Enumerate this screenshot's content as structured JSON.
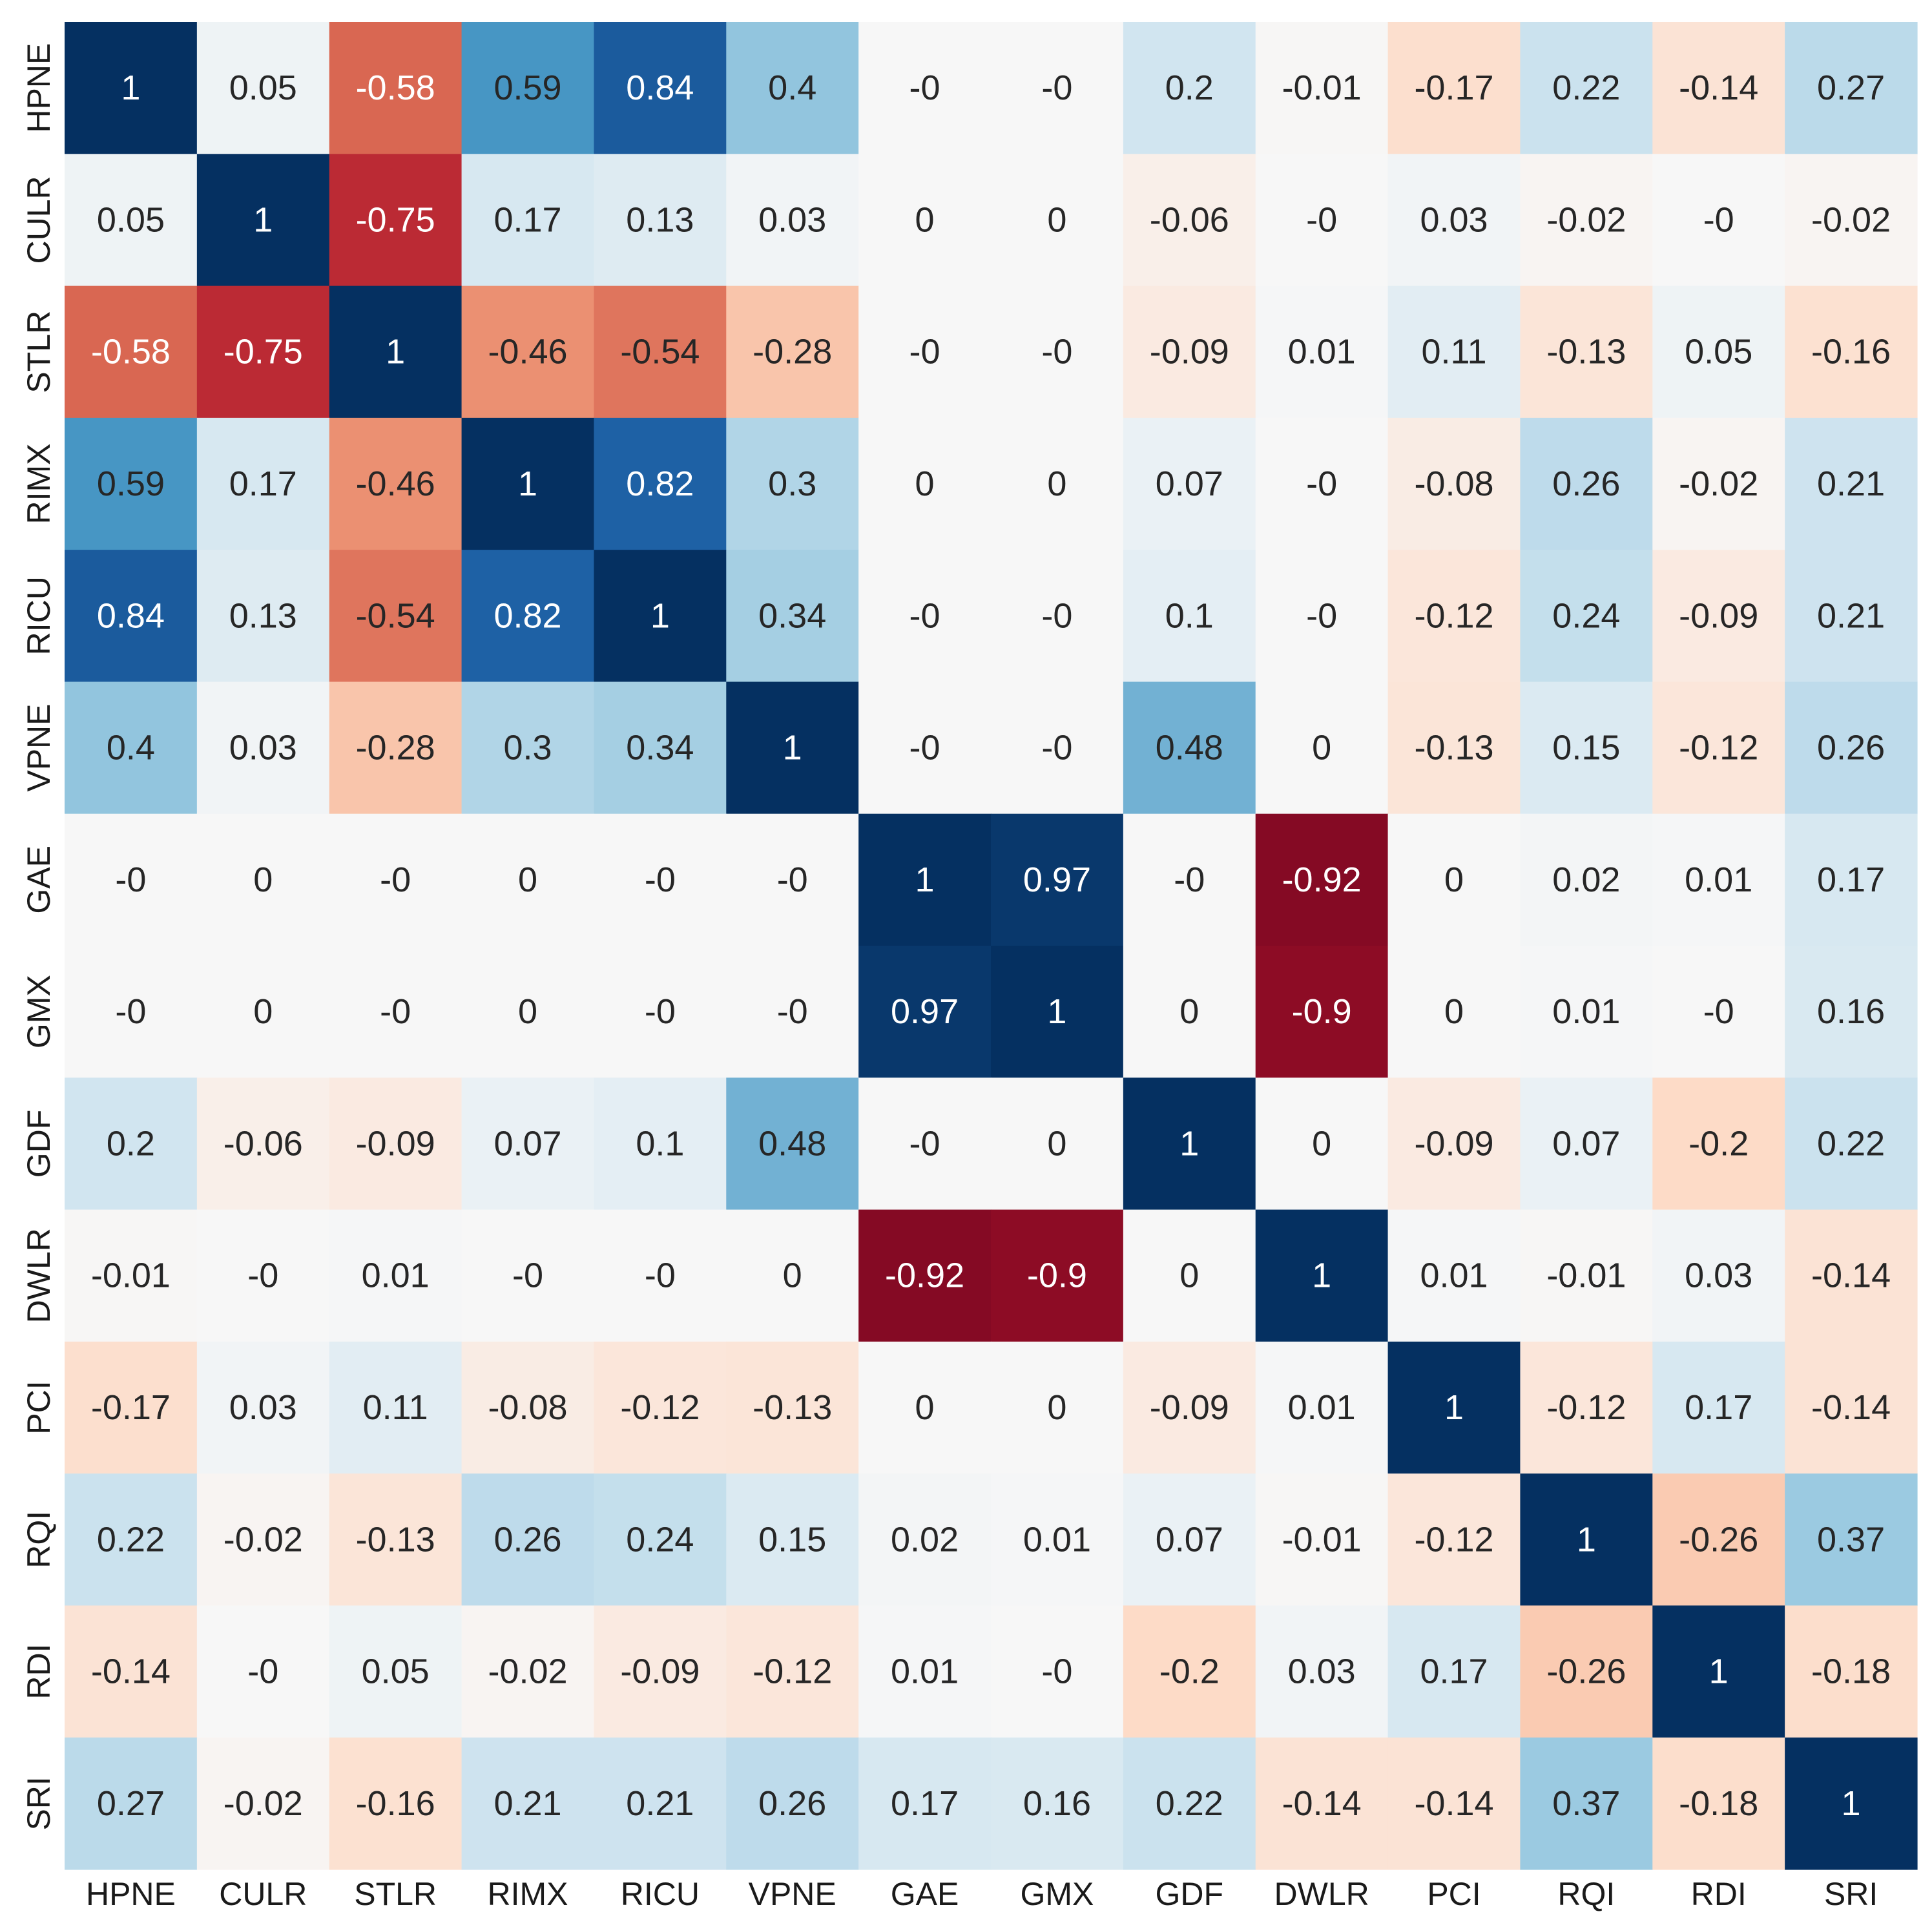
{
  "chart_data": {
    "type": "heatmap",
    "title": "",
    "xlabel": "",
    "ylabel": "",
    "colormap": "RdBu",
    "vmin": -1,
    "vmax": 1,
    "colorbar": false,
    "legend": "none",
    "grid": false,
    "x_labels": [
      "HPNE",
      "CULR",
      "STLR",
      "RIMX",
      "RICU",
      "VPNE",
      "GAE",
      "GMX",
      "GDF",
      "DWLR",
      "PCI",
      "RQI",
      "RDI",
      "SRI"
    ],
    "y_labels": [
      "HPNE",
      "CULR",
      "STLR",
      "RIMX",
      "RICU",
      "VPNE",
      "GAE",
      "GMX",
      "GDF",
      "DWLR",
      "PCI",
      "RQI",
      "RDI",
      "SRI"
    ],
    "values": [
      [
        "1",
        "0.05",
        "-0.58",
        "0.59",
        "0.84",
        "0.4",
        "-0",
        "-0",
        "0.2",
        "-0.01",
        "-0.17",
        "0.22",
        "-0.14",
        "0.27"
      ],
      [
        "0.05",
        "1",
        "-0.75",
        "0.17",
        "0.13",
        "0.03",
        "0",
        "0",
        "-0.06",
        "-0",
        "0.03",
        "-0.02",
        "-0",
        "-0.02"
      ],
      [
        "-0.58",
        "-0.75",
        "1",
        "-0.46",
        "-0.54",
        "-0.28",
        "-0",
        "-0",
        "-0.09",
        "0.01",
        "0.11",
        "-0.13",
        "0.05",
        "-0.16"
      ],
      [
        "0.59",
        "0.17",
        "-0.46",
        "1",
        "0.82",
        "0.3",
        "0",
        "0",
        "0.07",
        "-0",
        "-0.08",
        "0.26",
        "-0.02",
        "0.21"
      ],
      [
        "0.84",
        "0.13",
        "-0.54",
        "0.82",
        "1",
        "0.34",
        "-0",
        "-0",
        "0.1",
        "-0",
        "-0.12",
        "0.24",
        "-0.09",
        "0.21"
      ],
      [
        "0.4",
        "0.03",
        "-0.28",
        "0.3",
        "0.34",
        "1",
        "-0",
        "-0",
        "0.48",
        "0",
        "-0.13",
        "0.15",
        "-0.12",
        "0.26"
      ],
      [
        "-0",
        "0",
        "-0",
        "0",
        "-0",
        "-0",
        "1",
        "0.97",
        "-0",
        "-0.92",
        "0",
        "0.02",
        "0.01",
        "0.17"
      ],
      [
        "-0",
        "0",
        "-0",
        "0",
        "-0",
        "-0",
        "0.97",
        "1",
        "0",
        "-0.9",
        "0",
        "0.01",
        "-0",
        "0.16"
      ],
      [
        "0.2",
        "-0.06",
        "-0.09",
        "0.07",
        "0.1",
        "0.48",
        "-0",
        "0",
        "1",
        "0",
        "-0.09",
        "0.07",
        "-0.2",
        "0.22"
      ],
      [
        "-0.01",
        "-0",
        "0.01",
        "-0",
        "-0",
        "0",
        "-0.92",
        "-0.9",
        "0",
        "1",
        "0.01",
        "-0.01",
        "0.03",
        "-0.14"
      ],
      [
        "-0.17",
        "0.03",
        "0.11",
        "-0.08",
        "-0.12",
        "-0.13",
        "0",
        "0",
        "-0.09",
        "0.01",
        "1",
        "-0.12",
        "0.17",
        "-0.14"
      ],
      [
        "0.22",
        "-0.02",
        "-0.13",
        "0.26",
        "0.24",
        "0.15",
        "0.02",
        "0.01",
        "0.07",
        "-0.01",
        "-0.12",
        "1",
        "-0.26",
        "0.37"
      ],
      [
        "-0.14",
        "-0",
        "0.05",
        "-0.02",
        "-0.09",
        "-0.12",
        "0.01",
        "-0",
        "-0.2",
        "0.03",
        "0.17",
        "-0.26",
        "1",
        "-0.18"
      ],
      [
        "0.27",
        "-0.02",
        "-0.16",
        "0.21",
        "0.21",
        "0.26",
        "0.17",
        "0.16",
        "0.22",
        "-0.14",
        "-0.14",
        "0.37",
        "-0.18",
        "1"
      ]
    ]
  }
}
